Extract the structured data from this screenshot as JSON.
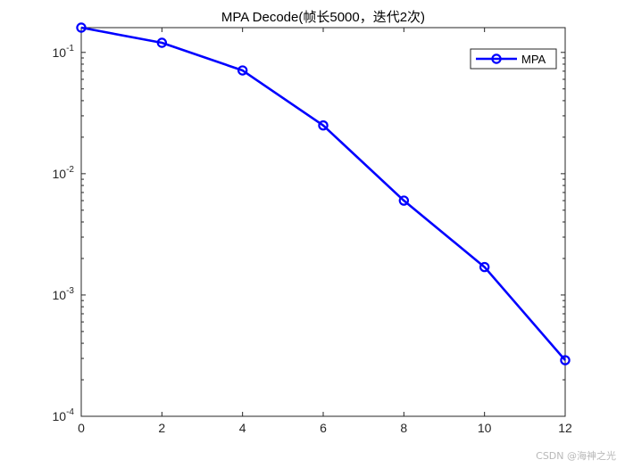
{
  "watermark": "CSDN @海神之光",
  "chart_data": {
    "type": "line",
    "title": "MPA Decode(帧长5000，迭代2次)",
    "xlabel": "",
    "ylabel": "",
    "x": [
      0,
      2,
      4,
      6,
      8,
      10,
      12
    ],
    "series": [
      {
        "name": "MPA",
        "values": [
          0.16,
          0.12,
          0.071,
          0.025,
          0.006,
          0.0017,
          0.00029
        ],
        "color": "#0000ff",
        "marker": "circle"
      }
    ],
    "xlim": [
      0,
      12
    ],
    "ylim": [
      0.0001,
      0.16
    ],
    "yscale": "log",
    "xticks": [
      0,
      2,
      4,
      6,
      8,
      10,
      12
    ],
    "xtick_labels": [
      "0",
      "2",
      "4",
      "6",
      "8",
      "10",
      "12"
    ],
    "yticks": [
      0.0001,
      0.001,
      0.01,
      0.1
    ],
    "ytick_labels": [
      {
        "base": "10",
        "exp": "-4"
      },
      {
        "base": "10",
        "exp": "-3"
      },
      {
        "base": "10",
        "exp": "-2"
      },
      {
        "base": "10",
        "exp": "-1"
      }
    ],
    "grid": false,
    "legend": "top-right"
  }
}
